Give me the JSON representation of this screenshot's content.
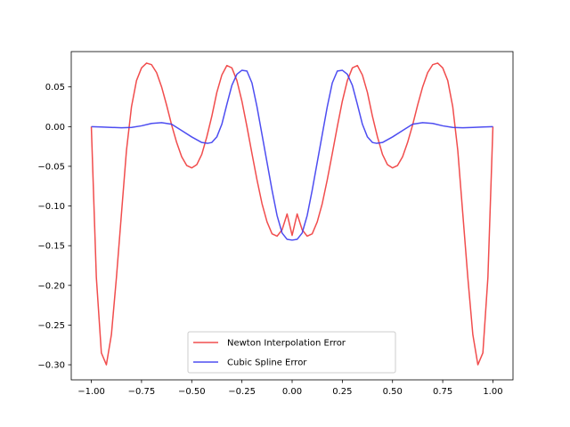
{
  "chart_data": {
    "type": "line",
    "title": "",
    "xlabel": "",
    "ylabel": "",
    "xlim": [
      -1.1,
      1.1
    ],
    "ylim": [
      -0.319,
      0.0945
    ],
    "grid": false,
    "legend_position": "bottom-center",
    "x_ticks": [
      -1.0,
      -0.75,
      -0.5,
      -0.25,
      0.0,
      0.25,
      0.5,
      0.75,
      1.0
    ],
    "x_tick_labels": [
      "−1.00",
      "−0.75",
      "−0.50",
      "−0.25",
      "0.00",
      "0.25",
      "0.50",
      "0.75",
      "1.00"
    ],
    "y_ticks": [
      0.05,
      0.0,
      -0.05,
      -0.1,
      -0.15,
      -0.2,
      -0.25,
      -0.3
    ],
    "y_tick_labels": [
      "0.05",
      "0.00",
      "−0.05",
      "−0.10",
      "−0.15",
      "−0.20",
      "−0.25",
      "−0.30"
    ],
    "series": [
      {
        "name": "Newton Interpolation Error",
        "color": "#ef3a3a",
        "x": [
          -1.0,
          -0.975,
          -0.95,
          -0.925,
          -0.9,
          -0.875,
          -0.85,
          -0.825,
          -0.8,
          -0.775,
          -0.75,
          -0.725,
          -0.7,
          -0.675,
          -0.65,
          -0.625,
          -0.6,
          -0.575,
          -0.55,
          -0.525,
          -0.5,
          -0.475,
          -0.45,
          -0.425,
          -0.4,
          -0.375,
          -0.35,
          -0.325,
          -0.3,
          -0.275,
          -0.25,
          -0.225,
          -0.2,
          -0.175,
          -0.15,
          -0.125,
          -0.1,
          -0.075,
          -0.05,
          -0.025,
          0.0,
          0.025,
          0.05,
          0.075,
          0.1,
          0.125,
          0.15,
          0.175,
          0.2,
          0.225,
          0.25,
          0.275,
          0.3,
          0.325,
          0.35,
          0.375,
          0.4,
          0.425,
          0.45,
          0.475,
          0.5,
          0.525,
          0.55,
          0.575,
          0.6,
          0.625,
          0.65,
          0.675,
          0.7,
          0.725,
          0.75,
          0.775,
          0.8,
          0.825,
          0.85,
          0.875,
          0.9,
          0.925,
          0.95,
          0.975,
          1.0
        ],
        "y": [
          0.0,
          -0.19,
          -0.285,
          -0.3,
          -0.262,
          -0.19,
          -0.11,
          -0.03,
          0.025,
          0.058,
          0.074,
          0.08,
          0.078,
          0.068,
          0.05,
          0.027,
          0.002,
          -0.02,
          -0.038,
          -0.049,
          -0.052,
          -0.048,
          -0.035,
          -0.013,
          0.013,
          0.043,
          0.065,
          0.077,
          0.074,
          0.058,
          0.032,
          0.0,
          -0.034,
          -0.067,
          -0.097,
          -0.12,
          -0.135,
          -0.138,
          -0.13,
          -0.11,
          -0.137,
          -0.11,
          -0.13,
          -0.138,
          -0.135,
          -0.12,
          -0.097,
          -0.067,
          -0.034,
          0.0,
          0.032,
          0.058,
          0.074,
          0.077,
          0.065,
          0.043,
          0.013,
          -0.013,
          -0.035,
          -0.048,
          -0.052,
          -0.049,
          -0.038,
          -0.02,
          0.002,
          0.027,
          0.05,
          0.068,
          0.078,
          0.08,
          0.074,
          0.058,
          0.025,
          -0.03,
          -0.11,
          -0.19,
          -0.262,
          -0.3,
          -0.285,
          -0.19,
          0.0
        ]
      },
      {
        "name": "Cubic Spline Error",
        "color": "#3a3aef",
        "x": [
          -1.0,
          -0.95,
          -0.9,
          -0.85,
          -0.8,
          -0.75,
          -0.7,
          -0.65,
          -0.6,
          -0.55,
          -0.5,
          -0.45,
          -0.42,
          -0.4,
          -0.375,
          -0.35,
          -0.325,
          -0.3,
          -0.275,
          -0.25,
          -0.225,
          -0.2,
          -0.175,
          -0.15,
          -0.125,
          -0.1,
          -0.075,
          -0.05,
          -0.025,
          0.0,
          0.025,
          0.05,
          0.075,
          0.1,
          0.125,
          0.15,
          0.175,
          0.2,
          0.225,
          0.25,
          0.275,
          0.3,
          0.325,
          0.35,
          0.375,
          0.4,
          0.42,
          0.45,
          0.5,
          0.55,
          0.6,
          0.65,
          0.7,
          0.75,
          0.8,
          0.85,
          0.9,
          0.95,
          1.0
        ],
        "y": [
          0.0,
          -0.0005,
          -0.001,
          -0.0015,
          -0.001,
          0.001,
          0.004,
          0.005,
          0.003,
          -0.005,
          -0.013,
          -0.02,
          -0.021,
          -0.02,
          -0.013,
          0.003,
          0.028,
          0.052,
          0.066,
          0.071,
          0.07,
          0.055,
          0.025,
          -0.01,
          -0.045,
          -0.08,
          -0.112,
          -0.134,
          -0.142,
          -0.143,
          -0.142,
          -0.134,
          -0.112,
          -0.08,
          -0.045,
          -0.01,
          0.025,
          0.055,
          0.07,
          0.071,
          0.066,
          0.052,
          0.028,
          0.003,
          -0.013,
          -0.02,
          -0.021,
          -0.02,
          -0.013,
          -0.005,
          0.003,
          0.005,
          0.004,
          0.001,
          -0.001,
          -0.0015,
          -0.001,
          -0.0005,
          0.0
        ]
      }
    ]
  }
}
